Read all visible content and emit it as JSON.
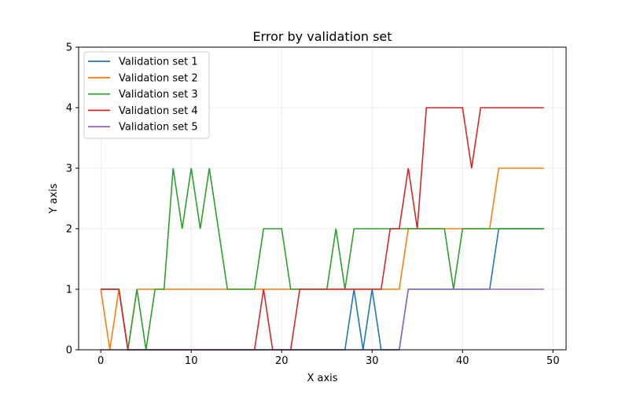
{
  "chart_data": {
    "type": "line",
    "title": "Error by validation set",
    "xlabel": "X axis",
    "ylabel": "Y axis",
    "xlim": [
      -2.45,
      51.45
    ],
    "ylim": [
      0,
      5
    ],
    "xticks": [
      0,
      10,
      20,
      30,
      40,
      50
    ],
    "yticks": [
      0,
      1,
      2,
      3,
      4,
      5
    ],
    "grid": true,
    "legend_position": "top-left",
    "x": [
      0,
      1,
      2,
      3,
      4,
      5,
      6,
      7,
      8,
      9,
      10,
      11,
      12,
      13,
      14,
      15,
      16,
      17,
      18,
      19,
      20,
      21,
      22,
      23,
      24,
      25,
      26,
      27,
      28,
      29,
      30,
      31,
      32,
      33,
      34,
      35,
      36,
      37,
      38,
      39,
      40,
      41,
      42,
      43,
      44,
      45,
      46,
      47,
      48,
      49
    ],
    "series": [
      {
        "name": "Validation set 1",
        "color": "#1f77b4",
        "values": [
          1,
          1,
          1,
          0,
          0,
          0,
          0,
          0,
          0,
          0,
          0,
          0,
          0,
          0,
          0,
          0,
          0,
          0,
          0,
          0,
          0,
          0,
          0,
          0,
          0,
          0,
          0,
          0,
          1,
          0,
          1,
          0,
          0,
          0,
          1,
          1,
          1,
          1,
          1,
          1,
          1,
          1,
          1,
          1,
          2,
          2,
          2,
          2,
          2,
          2
        ]
      },
      {
        "name": "Validation set 2",
        "color": "#ff7f0e",
        "values": [
          1,
          0,
          1,
          0,
          1,
          1,
          1,
          1,
          1,
          1,
          1,
          1,
          1,
          1,
          1,
          1,
          1,
          1,
          1,
          1,
          1,
          1,
          1,
          1,
          1,
          1,
          1,
          1,
          1,
          1,
          1,
          1,
          1,
          1,
          2,
          2,
          2,
          2,
          2,
          2,
          2,
          2,
          2,
          2,
          3,
          3,
          3,
          3,
          3,
          3
        ]
      },
      {
        "name": "Validation set 3",
        "color": "#2ca02c",
        "values": [
          1,
          1,
          1,
          0,
          1,
          0,
          1,
          1,
          3,
          2,
          3,
          2,
          3,
          2,
          1,
          1,
          1,
          1,
          2,
          2,
          2,
          1,
          1,
          1,
          1,
          1,
          2,
          1,
          2,
          2,
          2,
          2,
          2,
          2,
          2,
          2,
          2,
          2,
          2,
          1,
          2,
          2,
          2,
          2,
          2,
          2,
          2,
          2,
          2,
          2
        ]
      },
      {
        "name": "Validation set 4",
        "color": "#d62728",
        "values": [
          1,
          1,
          1,
          0,
          0,
          0,
          0,
          0,
          0,
          0,
          0,
          0,
          0,
          0,
          0,
          0,
          0,
          0,
          1,
          0,
          0,
          0,
          1,
          1,
          1,
          1,
          1,
          1,
          1,
          1,
          1,
          1,
          2,
          2,
          3,
          2,
          4,
          4,
          4,
          4,
          4,
          3,
          4,
          4,
          4,
          4,
          4,
          4,
          4,
          4
        ]
      },
      {
        "name": "Validation set 5",
        "color": "#9467bd",
        "values": [
          0,
          0,
          0,
          0,
          0,
          0,
          0,
          0,
          0,
          0,
          0,
          0,
          0,
          0,
          0,
          0,
          0,
          0,
          0,
          0,
          0,
          0,
          0,
          0,
          0,
          0,
          0,
          0,
          0,
          0,
          0,
          0,
          0,
          0,
          1,
          1,
          1,
          1,
          1,
          1,
          1,
          1,
          1,
          1,
          1,
          1,
          1,
          1,
          1,
          1
        ]
      }
    ]
  }
}
